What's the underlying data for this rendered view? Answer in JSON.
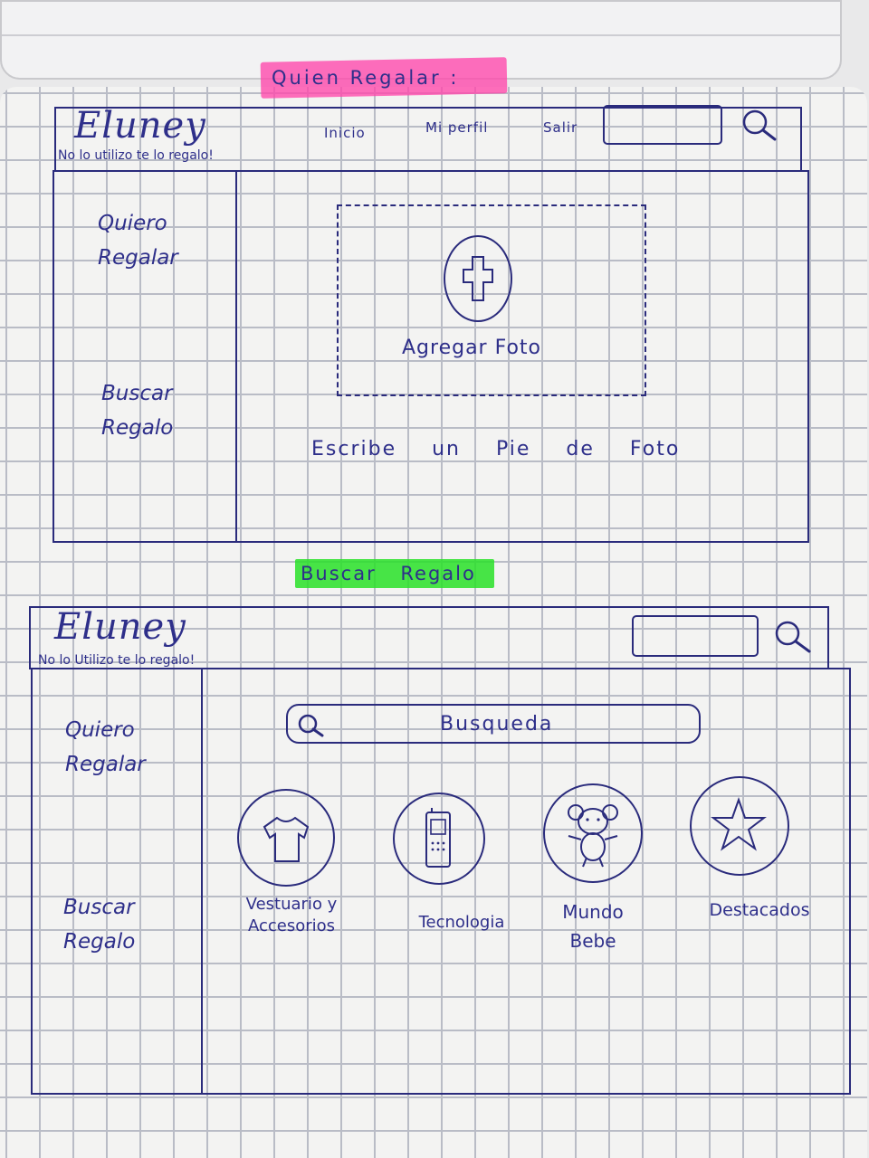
{
  "sections": {
    "top_title": "Quien Regalar :",
    "bottom_title": "Buscar Regalo"
  },
  "colors": {
    "ink": "#2a2b7c",
    "highlight_pink": "#ff46aa",
    "highlight_green": "#28e128",
    "grid": "#b9bcc6"
  },
  "wireframe1": {
    "logo": "Eluney",
    "tagline": "No lo utilizo te lo regalo!",
    "nav": [
      "Inicio",
      "Mi perfil",
      "Salir"
    ],
    "search_icon": "search-icon",
    "sidebar": [
      "Quiero Regalar",
      "Buscar Regalo"
    ],
    "upload_label": "Agregar Foto",
    "upload_icon": "plus-icon",
    "caption_placeholder": "Escribe un Pie de Foto"
  },
  "wireframe2": {
    "logo": "Eluney",
    "tagline": "No lo Utilizo te lo regalo!",
    "search_icon": "search-icon",
    "sidebar": [
      "Quiero Regalar",
      "Buscar Regalo"
    ],
    "search_placeholder": "Busqueda",
    "categories": [
      {
        "label": "Vestuario y Accesorios",
        "icon": "shirt-icon"
      },
      {
        "label": "Tecnologia",
        "icon": "phone-icon"
      },
      {
        "label": "Mundo Bebe",
        "icon": "teddy-bear-icon"
      },
      {
        "label": "Destacados",
        "icon": "star-icon"
      }
    ]
  }
}
